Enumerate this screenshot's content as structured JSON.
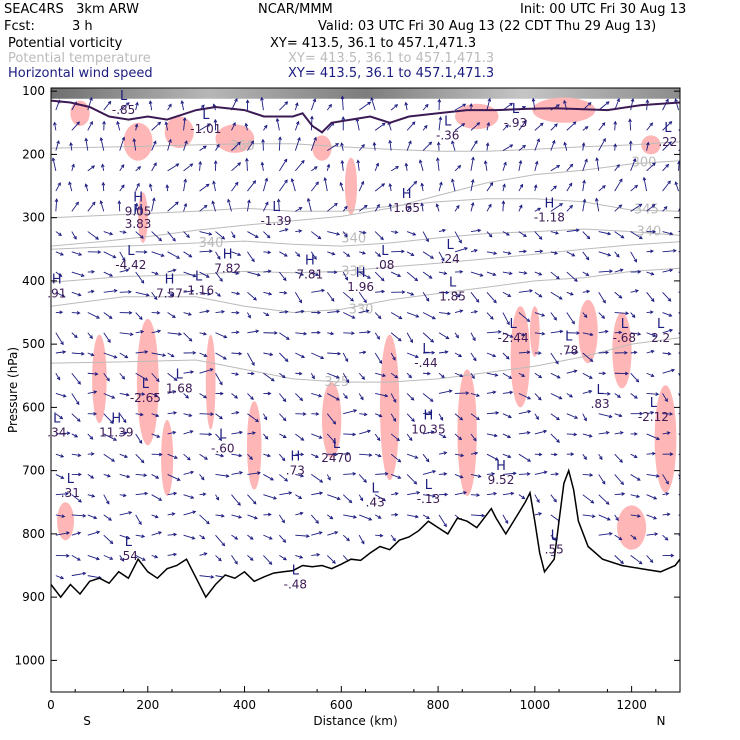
{
  "header": {
    "model": "SEAC4RS   3km ARW",
    "org": "NCAR/MMM",
    "init": "Init: 00 UTC Fri 30 Aug 13",
    "fcst_label": "Fcst:",
    "fcst_value": "3 h",
    "valid": "Valid: 03 UTC Fri 30 Aug 13 (22 CDT Thu 29 Aug 13)",
    "fields": [
      {
        "name": "Potential vorticity",
        "xy": "XY= 413.5, 36.1 to 457.1,471.3",
        "color": "#000000"
      },
      {
        "name": "Potential temperature",
        "xy": "XY= 413.5, 36.1 to 457.1,471.3",
        "color": "#bbbbbb"
      },
      {
        "name": "Horizontal wind speed",
        "xy": "XY= 413.5, 36.1 to 457.1,471.3",
        "color": "#1c1c80"
      }
    ]
  },
  "colors": {
    "pv_positive_fill": "#ffb6b6",
    "theta_contour": "#bbbbbb",
    "wind_vector": "#1c1c80",
    "terrain": "#000000",
    "tropopause": "#3b1a55"
  },
  "chart_data": {
    "type": "cross-section",
    "xlabel": "Distance (km)",
    "ylabel": "Pressure (hPa)",
    "xlim": [
      0,
      1300
    ],
    "ylim": [
      1050,
      95
    ],
    "x_ticks": [
      0,
      200,
      400,
      600,
      800,
      1000,
      1200
    ],
    "y_ticks": [
      100,
      200,
      300,
      400,
      500,
      600,
      700,
      800,
      900,
      1000
    ],
    "x_end_labels": {
      "left": "S",
      "right": "N"
    },
    "theta_contours": [
      {
        "value": "300",
        "pts": [
          [
            0,
            345
          ],
          [
            100,
            338
          ],
          [
            200,
            330
          ],
          [
            300,
            320
          ],
          [
            400,
            312
          ],
          [
            500,
            305
          ],
          [
            600,
            298
          ],
          [
            700,
            285
          ],
          [
            800,
            265
          ],
          [
            900,
            245
          ],
          [
            1000,
            232
          ],
          [
            1100,
            225
          ],
          [
            1200,
            215
          ],
          [
            1300,
            210
          ]
        ],
        "label_at": [
          1200,
          213
        ]
      },
      {
        "value": "325",
        "pts": [
          [
            0,
            530
          ],
          [
            150,
            528
          ],
          [
            300,
            525
          ],
          [
            400,
            540
          ],
          [
            500,
            555
          ],
          [
            600,
            560
          ],
          [
            700,
            560
          ],
          [
            800,
            555
          ],
          [
            900,
            545
          ],
          [
            1000,
            535
          ],
          [
            1100,
            520
          ],
          [
            1200,
            500
          ],
          [
            1300,
            490
          ]
        ],
        "label_at": [
          565,
          560
        ]
      },
      {
        "value": "330",
        "pts": [
          [
            0,
            440
          ],
          [
            150,
            425
          ],
          [
            300,
            425
          ],
          [
            400,
            440
          ],
          [
            500,
            450
          ],
          [
            600,
            445
          ],
          [
            700,
            430
          ],
          [
            800,
            420
          ],
          [
            900,
            410
          ],
          [
            1000,
            400
          ],
          [
            1100,
            395
          ],
          [
            1200,
            385
          ],
          [
            1300,
            380
          ]
        ],
        "label_at": [
          615,
          445
        ]
      },
      {
        "value": "335",
        "pts": [
          [
            0,
            402
          ],
          [
            150,
            393
          ],
          [
            300,
            390
          ],
          [
            400,
            385
          ],
          [
            500,
            387
          ],
          [
            600,
            385
          ],
          [
            700,
            378
          ],
          [
            800,
            372
          ],
          [
            900,
            365
          ],
          [
            1000,
            358
          ],
          [
            1100,
            350
          ],
          [
            1200,
            343
          ],
          [
            1300,
            338
          ]
        ],
        "label_at": [
          600,
          385
        ]
      },
      {
        "value": "340",
        "pts": [
          [
            0,
            350
          ],
          [
            150,
            345
          ],
          [
            300,
            340
          ],
          [
            400,
            337
          ],
          [
            500,
            342
          ],
          [
            600,
            345
          ],
          [
            700,
            340
          ],
          [
            800,
            332
          ],
          [
            900,
            325
          ],
          [
            1000,
            322
          ],
          [
            1100,
            318
          ],
          [
            1200,
            322
          ],
          [
            1300,
            328
          ]
        ],
        "label_at": [
          1210,
          322
        ]
      },
      {
        "value": "345",
        "pts": [
          [
            0,
            300
          ],
          [
            150,
            295
          ],
          [
            300,
            290
          ],
          [
            400,
            285
          ],
          [
            500,
            290
          ],
          [
            600,
            290
          ],
          [
            700,
            282
          ],
          [
            800,
            275
          ],
          [
            900,
            270
          ],
          [
            1000,
            270
          ],
          [
            1100,
            275
          ],
          [
            1200,
            288
          ],
          [
            1300,
            290
          ]
        ],
        "label_at": [
          1205,
          287
        ]
      },
      {
        "value": "360",
        "pts": [
          [
            0,
            190
          ],
          [
            150,
            188
          ],
          [
            300,
            185
          ],
          [
            400,
            183
          ],
          [
            500,
            183
          ],
          [
            600,
            188
          ],
          [
            700,
            192
          ],
          [
            800,
            195
          ],
          [
            900,
            195
          ],
          [
            1000,
            192
          ],
          [
            1100,
            188
          ],
          [
            1200,
            185
          ],
          [
            1300,
            180
          ]
        ],
        "label_at": [
          370,
          187
        ]
      }
    ],
    "theta_extra_labels": [
      {
        "value": "340",
        "at": [
          305,
          340
        ]
      },
      {
        "value": "340",
        "at": [
          600,
          333
        ]
      }
    ],
    "terrain": [
      [
        0,
        880
      ],
      [
        20,
        900
      ],
      [
        40,
        880
      ],
      [
        60,
        895
      ],
      [
        80,
        875
      ],
      [
        100,
        870
      ],
      [
        120,
        878
      ],
      [
        140,
        860
      ],
      [
        160,
        870
      ],
      [
        180,
        840
      ],
      [
        200,
        860
      ],
      [
        220,
        870
      ],
      [
        240,
        855
      ],
      [
        260,
        850
      ],
      [
        280,
        840
      ],
      [
        300,
        870
      ],
      [
        320,
        900
      ],
      [
        340,
        880
      ],
      [
        360,
        865
      ],
      [
        380,
        870
      ],
      [
        400,
        860
      ],
      [
        420,
        875
      ],
      [
        440,
        868
      ],
      [
        460,
        862
      ],
      [
        480,
        860
      ],
      [
        500,
        858
      ],
      [
        520,
        850
      ],
      [
        540,
        852
      ],
      [
        560,
        850
      ],
      [
        580,
        855
      ],
      [
        600,
        848
      ],
      [
        620,
        840
      ],
      [
        640,
        842
      ],
      [
        660,
        830
      ],
      [
        680,
        820
      ],
      [
        700,
        825
      ],
      [
        720,
        810
      ],
      [
        740,
        805
      ],
      [
        760,
        795
      ],
      [
        780,
        780
      ],
      [
        800,
        790
      ],
      [
        820,
        800
      ],
      [
        840,
        775
      ],
      [
        860,
        780
      ],
      [
        880,
        790
      ],
      [
        900,
        770
      ],
      [
        910,
        760
      ],
      [
        920,
        775
      ],
      [
        940,
        800
      ],
      [
        960,
        775
      ],
      [
        980,
        750
      ],
      [
        990,
        735
      ],
      [
        1000,
        780
      ],
      [
        1010,
        830
      ],
      [
        1020,
        860
      ],
      [
        1040,
        840
      ],
      [
        1050,
        780
      ],
      [
        1060,
        720
      ],
      [
        1070,
        700
      ],
      [
        1080,
        730
      ],
      [
        1090,
        780
      ],
      [
        1110,
        820
      ],
      [
        1140,
        840
      ],
      [
        1180,
        850
      ],
      [
        1220,
        855
      ],
      [
        1260,
        860
      ],
      [
        1290,
        850
      ],
      [
        1300,
        840
      ]
    ],
    "tropopause": [
      [
        0,
        115
      ],
      [
        40,
        118
      ],
      [
        80,
        125
      ],
      [
        120,
        140
      ],
      [
        160,
        145
      ],
      [
        200,
        140
      ],
      [
        240,
        145
      ],
      [
        300,
        130
      ],
      [
        340,
        125
      ],
      [
        400,
        130
      ],
      [
        440,
        140
      ],
      [
        500,
        140
      ],
      [
        520,
        135
      ],
      [
        540,
        155
      ],
      [
        560,
        165
      ],
      [
        580,
        150
      ],
      [
        620,
        145
      ],
      [
        660,
        140
      ],
      [
        700,
        150
      ],
      [
        740,
        140
      ],
      [
        800,
        135
      ],
      [
        860,
        130
      ],
      [
        920,
        130
      ],
      [
        980,
        128
      ],
      [
        1040,
        127
      ],
      [
        1080,
        128
      ],
      [
        1150,
        130
      ],
      [
        1220,
        122
      ],
      [
        1300,
        118
      ]
    ],
    "pv_positive_regions": [
      {
        "x": 60,
        "p": 135,
        "w": 40,
        "h": 40
      },
      {
        "x": 180,
        "p": 180,
        "w": 60,
        "h": 60
      },
      {
        "x": 265,
        "p": 165,
        "w": 60,
        "h": 50
      },
      {
        "x": 380,
        "p": 175,
        "w": 80,
        "h": 45
      },
      {
        "x": 560,
        "p": 190,
        "w": 40,
        "h": 40
      },
      {
        "x": 620,
        "p": 250,
        "w": 25,
        "h": 90
      },
      {
        "x": 880,
        "p": 140,
        "w": 90,
        "h": 40
      },
      {
        "x": 1060,
        "p": 130,
        "w": 130,
        "h": 40
      },
      {
        "x": 1240,
        "p": 185,
        "w": 40,
        "h": 30
      },
      {
        "x": 190,
        "p": 300,
        "w": 20,
        "h": 80
      },
      {
        "x": 100,
        "p": 555,
        "w": 30,
        "h": 140
      },
      {
        "x": 200,
        "p": 560,
        "w": 45,
        "h": 200
      },
      {
        "x": 240,
        "p": 680,
        "w": 25,
        "h": 120
      },
      {
        "x": 330,
        "p": 560,
        "w": 20,
        "h": 150
      },
      {
        "x": 420,
        "p": 660,
        "w": 30,
        "h": 140
      },
      {
        "x": 580,
        "p": 620,
        "w": 40,
        "h": 120
      },
      {
        "x": 700,
        "p": 600,
        "w": 40,
        "h": 230
      },
      {
        "x": 860,
        "p": 640,
        "w": 40,
        "h": 200
      },
      {
        "x": 970,
        "p": 520,
        "w": 40,
        "h": 160
      },
      {
        "x": 1000,
        "p": 480,
        "w": 20,
        "h": 80
      },
      {
        "x": 1110,
        "p": 480,
        "w": 40,
        "h": 100
      },
      {
        "x": 1180,
        "p": 510,
        "w": 40,
        "h": 120
      },
      {
        "x": 1270,
        "p": 650,
        "w": 45,
        "h": 170
      },
      {
        "x": 30,
        "p": 780,
        "w": 35,
        "h": 60
      },
      {
        "x": 1200,
        "p": 790,
        "w": 60,
        "h": 70
      }
    ],
    "extrema_labels": [
      {
        "kind": "L",
        "value": "-.85",
        "at": [
          150,
          130
        ]
      },
      {
        "kind": "L",
        "value": "-1.01",
        "at": [
          320,
          160
        ]
      },
      {
        "kind": "L",
        "value": "-.93",
        "at": [
          960,
          150
        ]
      },
      {
        "kind": "L",
        "value": "-.36",
        "at": [
          820,
          170
        ]
      },
      {
        "kind": "L",
        "value": ".22",
        "at": [
          1275,
          180
        ]
      },
      {
        "kind": "H",
        "value": "9.05",
        "at": [
          180,
          290
        ]
      },
      {
        "kind": "H",
        "value": "3.83",
        "at": [
          180,
          310
        ]
      },
      {
        "kind": "L",
        "value": "-1.39",
        "at": [
          465,
          305
        ]
      },
      {
        "kind": "H",
        "value": "1.65",
        "at": [
          735,
          285
        ]
      },
      {
        "kind": "H",
        "value": "-1.18",
        "at": [
          1030,
          300
        ]
      },
      {
        "kind": "L",
        "value": "-4.42",
        "at": [
          165,
          375
        ]
      },
      {
        "kind": "H",
        "value": "7.82",
        "at": [
          365,
          380
        ]
      },
      {
        "kind": "H",
        "value": "7.81",
        "at": [
          535,
          390
        ]
      },
      {
        "kind": "L",
        "value": ".08",
        "at": [
          690,
          375
        ]
      },
      {
        "kind": "L",
        "value": ".24",
        "at": [
          825,
          365
        ]
      },
      {
        "kind": "H",
        "value": ".91",
        "at": [
          12,
          420
        ]
      },
      {
        "kind": "H",
        "value": "7.57",
        "at": [
          245,
          420
        ]
      },
      {
        "kind": "L",
        "value": "-1.16",
        "at": [
          305,
          415
        ]
      },
      {
        "kind": "H",
        "value": "1.96",
        "at": [
          640,
          410
        ]
      },
      {
        "kind": "L",
        "value": "1.85",
        "at": [
          830,
          425
        ]
      },
      {
        "kind": "L",
        "value": "-2.44",
        "at": [
          955,
          490
        ]
      },
      {
        "kind": "L",
        "value": "-.68",
        "at": [
          1185,
          490
        ]
      },
      {
        "kind": "L",
        "value": "2.2",
        "at": [
          1260,
          490
        ]
      },
      {
        "kind": "L",
        "value": "-.44",
        "at": [
          775,
          530
        ]
      },
      {
        "kind": "L",
        "value": ".78",
        "at": [
          1070,
          510
        ]
      },
      {
        "kind": "L",
        "value": "-2.65",
        "at": [
          195,
          585
        ]
      },
      {
        "kind": "L",
        "value": "1.68",
        "at": [
          265,
          570
        ]
      },
      {
        "kind": "L",
        "value": ".83",
        "at": [
          1135,
          595
        ]
      },
      {
        "kind": "L",
        "value": "-2.12",
        "at": [
          1245,
          615
        ]
      },
      {
        "kind": "H",
        "value": "11.39",
        "at": [
          135,
          640
        ]
      },
      {
        "kind": "H",
        "value": "10.35",
        "at": [
          780,
          635
        ]
      },
      {
        "kind": "L",
        "value": ".34",
        "at": [
          12,
          640
        ]
      },
      {
        "kind": "L",
        "value": "-.60",
        "at": [
          355,
          665
        ]
      },
      {
        "kind": "H",
        "value": ".73",
        "at": [
          505,
          700
        ]
      },
      {
        "kind": "L",
        "value": "2470",
        "at": [
          590,
          680
        ]
      },
      {
        "kind": "H",
        "value": "9.52",
        "at": [
          930,
          715
        ]
      },
      {
        "kind": "L",
        "value": ".31",
        "at": [
          40,
          735
        ]
      },
      {
        "kind": "L",
        "value": ".43",
        "at": [
          670,
          750
        ]
      },
      {
        "kind": "L",
        "value": "-.13",
        "at": [
          780,
          745
        ]
      },
      {
        "kind": "L",
        "value": ".54",
        "at": [
          160,
          835
        ]
      },
      {
        "kind": "L",
        "value": "-.48",
        "at": [
          505,
          880
        ]
      },
      {
        "kind": "L",
        "value": ".55",
        "at": [
          1040,
          825
        ]
      }
    ]
  }
}
